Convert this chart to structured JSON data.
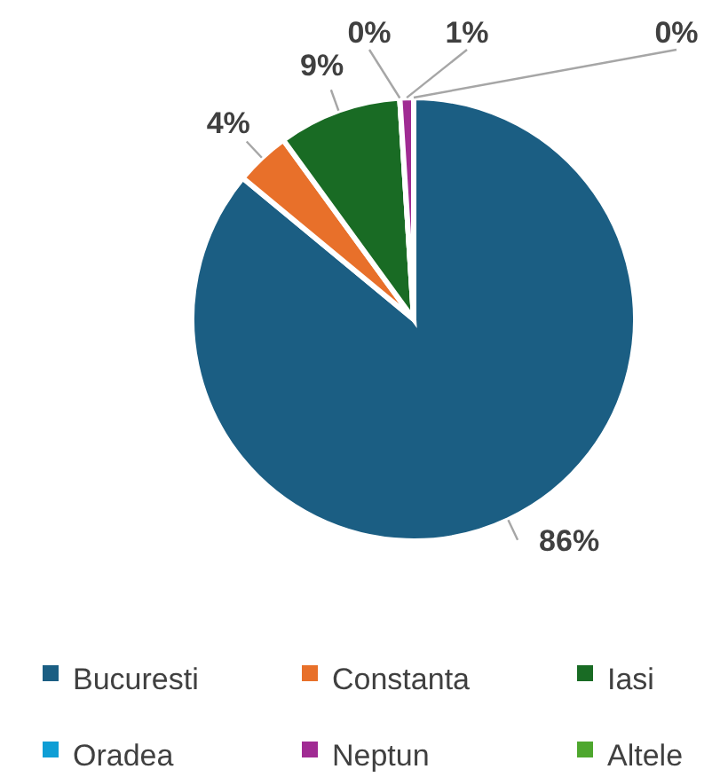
{
  "chart_data": {
    "type": "pie",
    "categories": [
      "Bucuresti",
      "Constanta",
      "Iasi",
      "Oradea",
      "Neptun",
      "Altele"
    ],
    "values": [
      86,
      4,
      9,
      0,
      1,
      0
    ],
    "value_labels": [
      "86%",
      "4%",
      "9%",
      "0%",
      "1%",
      "0%"
    ],
    "colors": [
      "#1b5e83",
      "#e8702a",
      "#196b24",
      "#0f9ed5",
      "#a02b93",
      "#4ea72e"
    ],
    "legend": "bottom"
  }
}
